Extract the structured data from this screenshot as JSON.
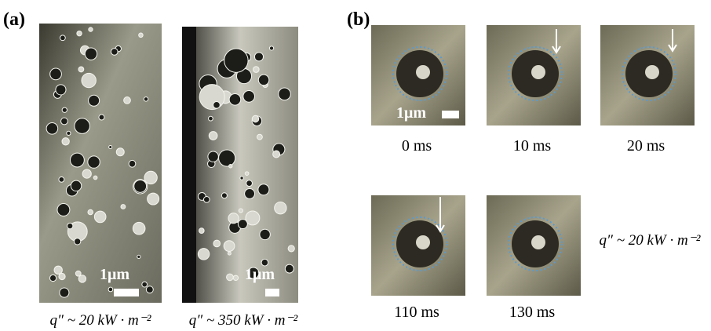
{
  "panel_a": {
    "label": "(a)",
    "images": [
      {
        "scale_label": "1μm",
        "caption": "q″ ~ 20 kW · m⁻²"
      },
      {
        "scale_label": "1μm",
        "caption": "q″ ~ 350 kW · m⁻²"
      }
    ]
  },
  "panel_b": {
    "label": "(b)",
    "scale_label": "1μm",
    "frames": [
      "0 ms",
      "10 ms",
      "20 ms",
      "110 ms",
      "130 ms"
    ],
    "heat_flux": "q″ ~ 20 kW · m⁻²"
  }
}
